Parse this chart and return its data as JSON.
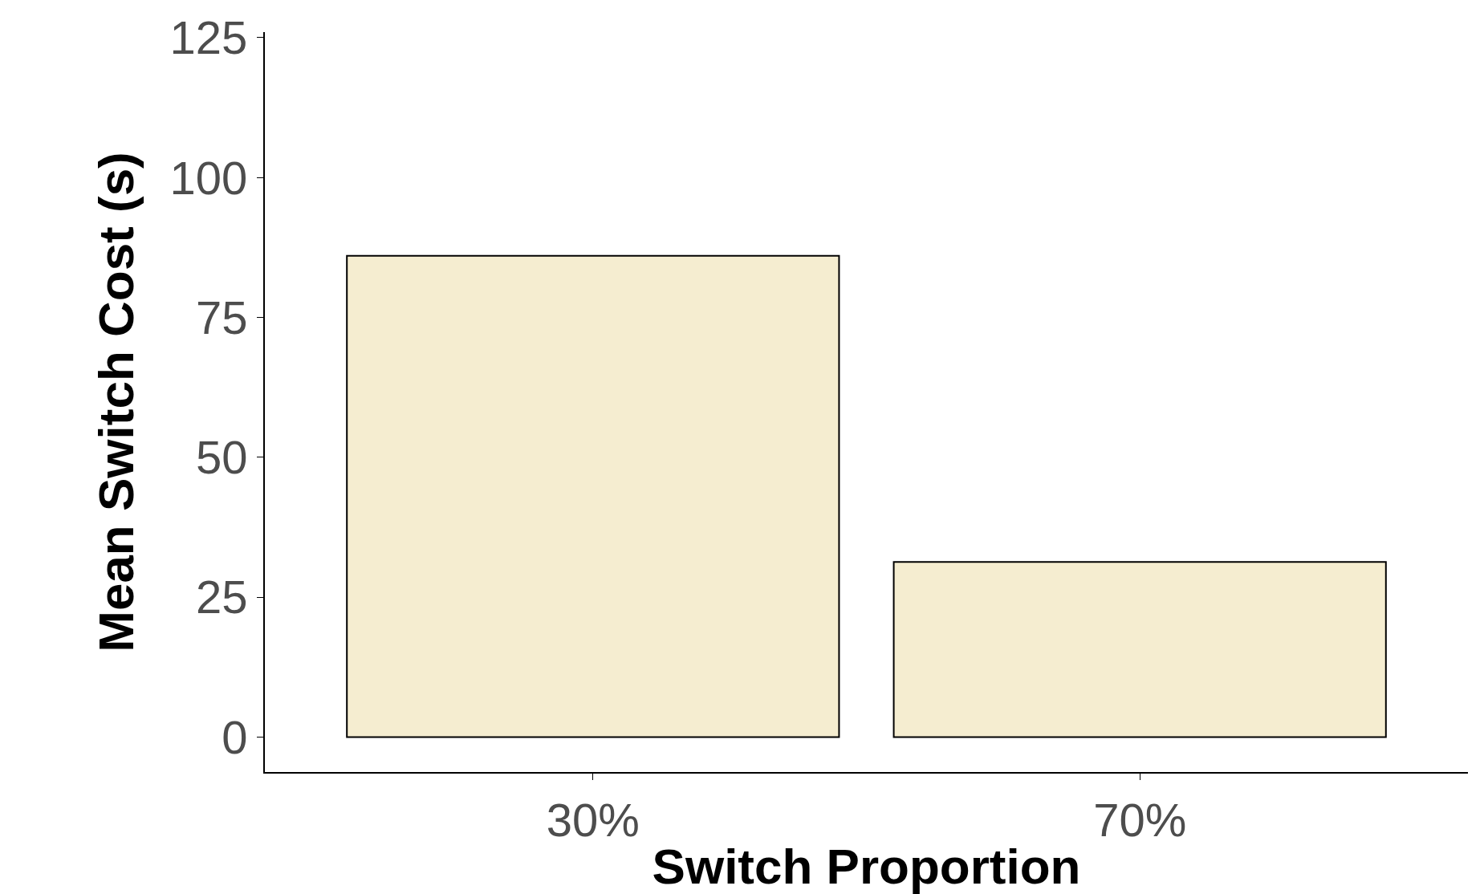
{
  "chart_data": {
    "type": "bar",
    "xlabel": "Switch Proportion",
    "ylabel": "Mean Switch Cost (s)",
    "categories": [
      "30%",
      "70%"
    ],
    "series": [
      {
        "color": "#f5edd0",
        "values": [
          86,
          31.3
        ]
      }
    ],
    "ylim": [
      -6.25,
      126
    ],
    "yticks": [
      0,
      25,
      50,
      75,
      100,
      125
    ],
    "legend": false
  }
}
